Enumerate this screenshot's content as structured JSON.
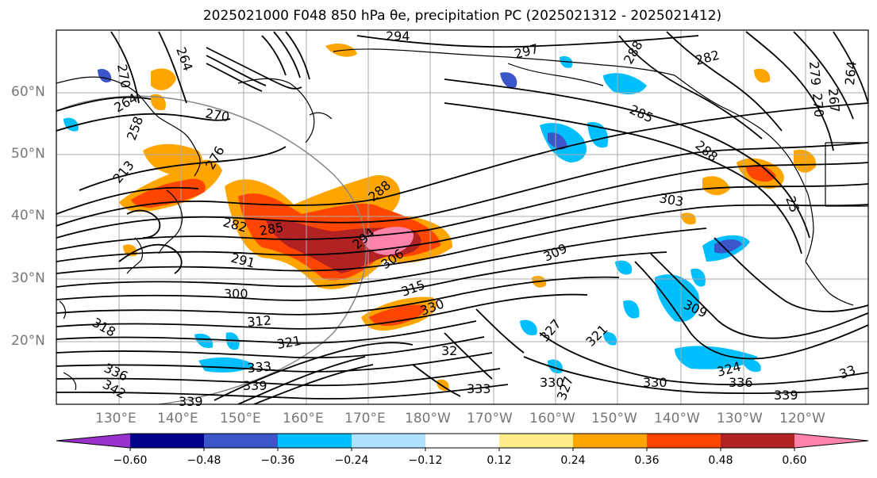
{
  "title": "2025021000 F048 850 hPa θe, precipitation PC (2025021312 - 2025021412)",
  "lat_labels": [
    "60°N",
    "50°N",
    "40°N",
    "30°N",
    "20°N"
  ],
  "lon_labels": [
    "130°E",
    "140°E",
    "150°E",
    "160°E",
    "170°E",
    "180°W",
    "170°W",
    "160°W",
    "150°W",
    "140°W",
    "130°W",
    "120°W"
  ],
  "contour_labels": [
    "294",
    "264",
    "270",
    "264",
    "270",
    "276",
    "282",
    "285",
    "288",
    "291",
    "294",
    "300",
    "306",
    "312",
    "315",
    "318",
    "321",
    "330",
    "336",
    "342",
    "339",
    "333",
    "339",
    "309",
    "303",
    "288",
    "285",
    "282",
    "279",
    "270",
    "267",
    "264",
    "297",
    "288",
    "309",
    "324",
    "336",
    "339",
    "330",
    "327",
    "333",
    "330",
    "327",
    "321",
    "32",
    "33",
    "213",
    "258",
    "25"
  ],
  "colorbar": {
    "ticks": [
      "−0.60",
      "−0.48",
      "−0.36",
      "−0.24",
      "−0.12",
      "0.12",
      "0.24",
      "0.36",
      "0.48",
      "0.60"
    ],
    "colors": [
      "#9932CC",
      "#00008B",
      "#3A56C8",
      "#00BFFF",
      "#B0E2FF",
      "#FFFFFF",
      "#FFEC8B",
      "#FFA500",
      "#FF4500",
      "#B22222",
      "#FF82AB"
    ]
  }
}
